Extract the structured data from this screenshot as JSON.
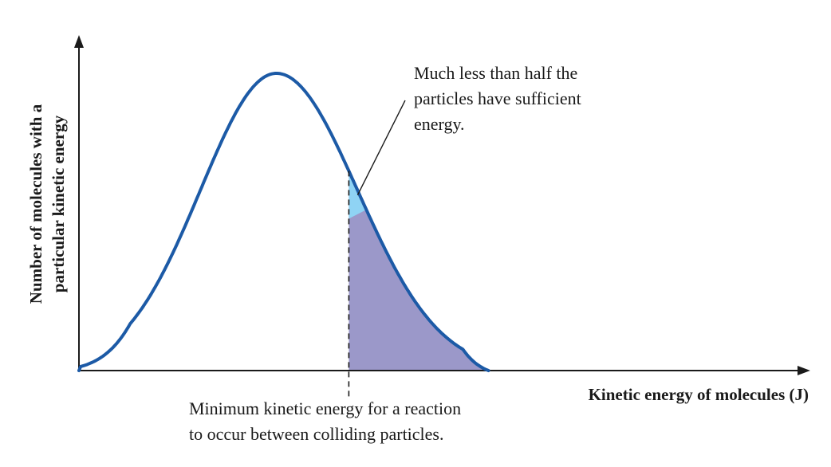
{
  "chart_data": {
    "type": "area",
    "title": "",
    "xlabel": "Kinetic energy of  molecules (J)",
    "ylabel_lines": [
      "Number of molecules  with a",
      "particular  kinetic energy"
    ],
    "xlim": [
      0,
      100
    ],
    "ylim": [
      0,
      100
    ],
    "grid": false,
    "legend": "none",
    "ticks": "none",
    "distribution": {
      "shape": "Maxwell-Boltzmann",
      "peak_x": 27,
      "peak_y": 100,
      "x_end": 56
    },
    "threshold": {
      "x": 36.9,
      "label_lines": [
        "Minimum kinetic energy for a reaction",
        "to occur between colliding particles."
      ]
    },
    "annotation": {
      "text_lines": [
        "Much less than half the",
        "particles have sufficient",
        "energy."
      ]
    },
    "colors": {
      "curve": "#1c5aa6",
      "region_above_threshold": "#9b98c9",
      "highlight_sliver": "#8fd3f4",
      "axes": "#1a1a1a"
    }
  }
}
